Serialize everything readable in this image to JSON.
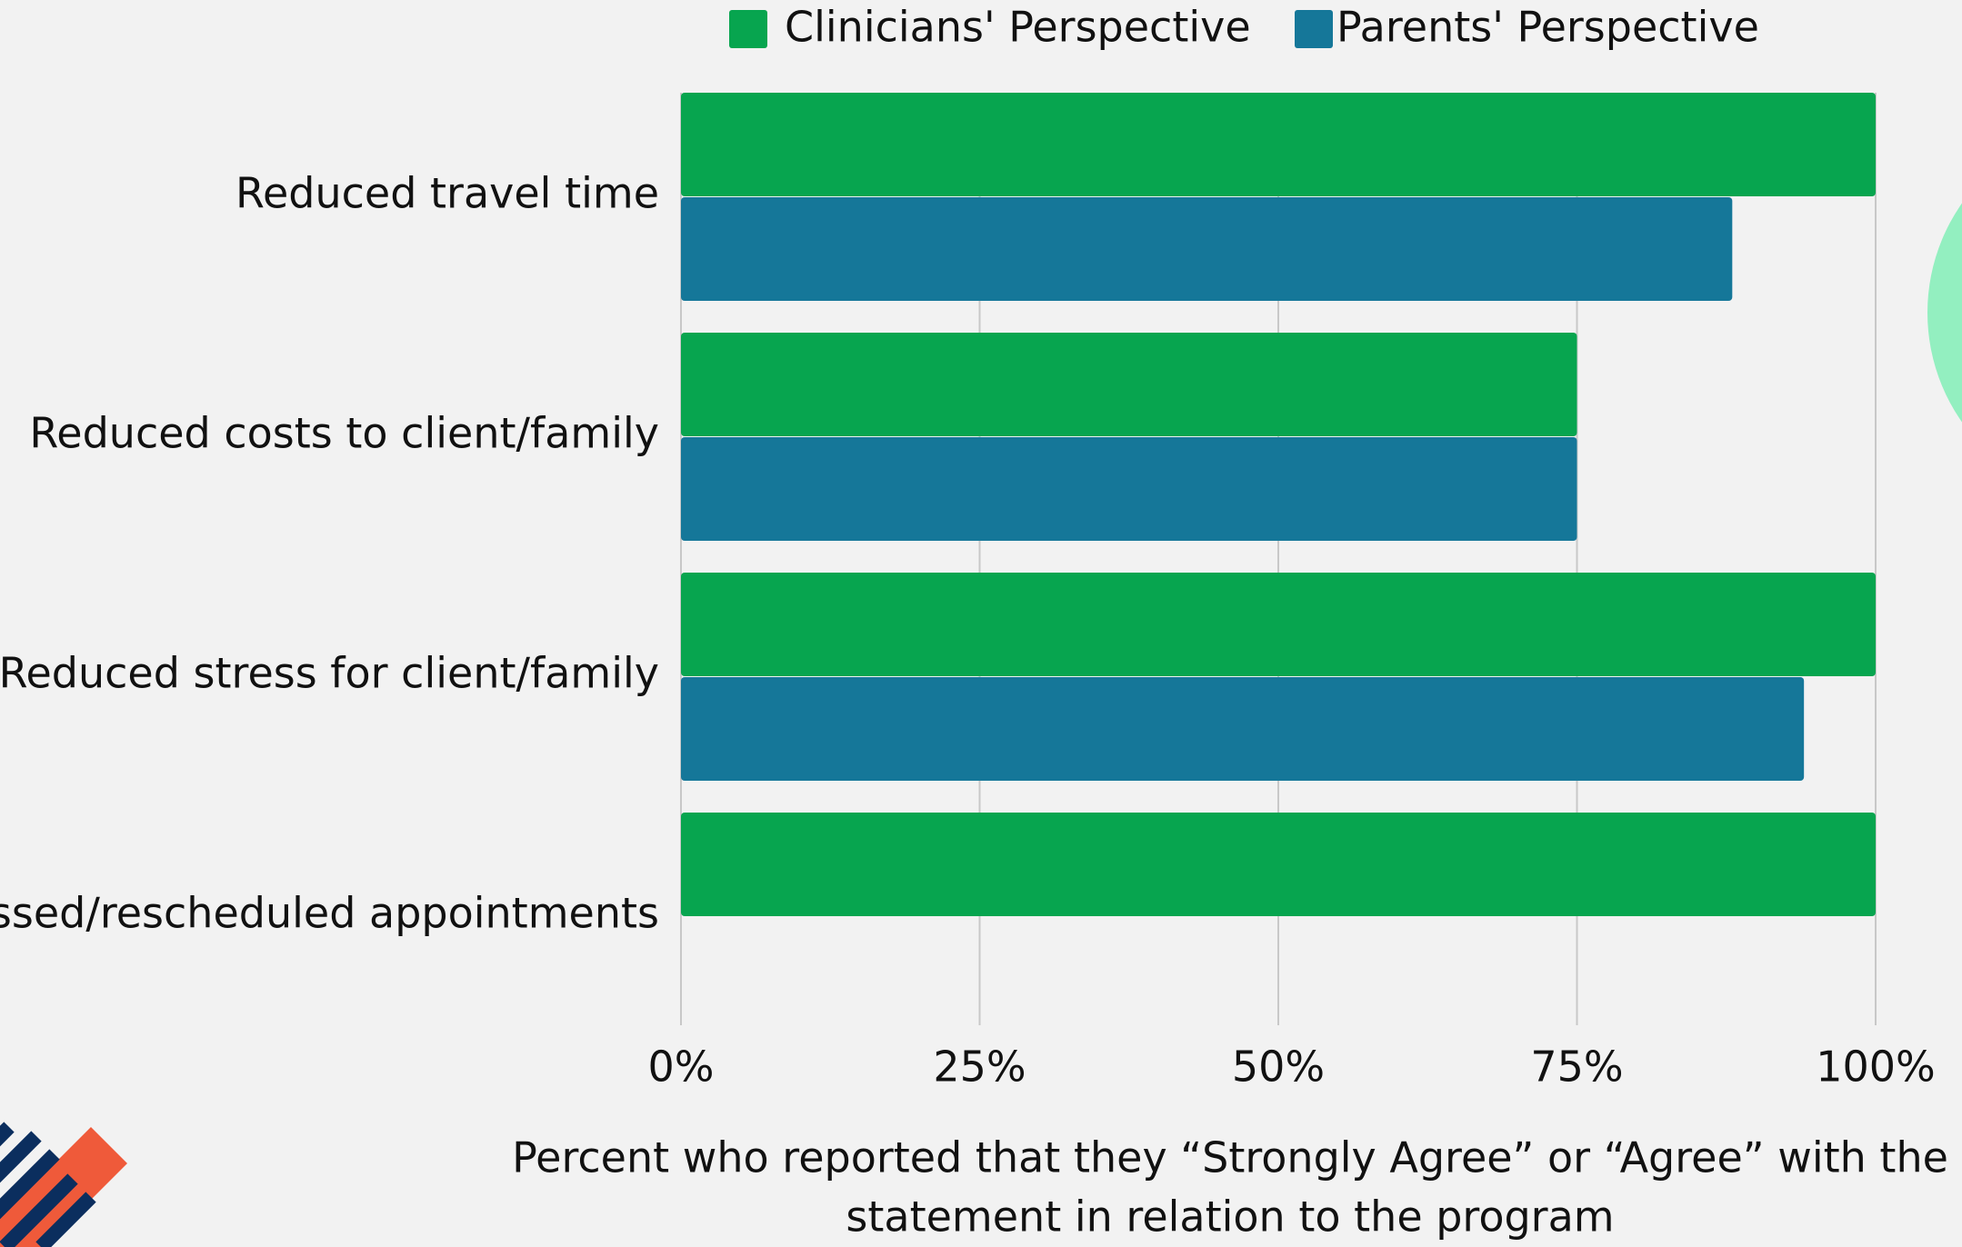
{
  "chart_data": {
    "type": "bar",
    "orientation": "horizontal",
    "categories": [
      "Reduced travel time",
      "Reduced costs to client/family",
      "Reduced stress for client/family",
      "ssed/rescheduled appointments"
    ],
    "series": [
      {
        "name": "Clinicians' Perspective",
        "color": "#07a54f",
        "values": [
          100,
          75,
          100,
          100
        ]
      },
      {
        "name": "Parents' Perspective",
        "color": "#157799",
        "values": [
          88,
          75,
          94,
          null
        ]
      }
    ],
    "xlim": [
      0,
      100
    ],
    "xticks": [
      {
        "value": 0,
        "label": "0%"
      },
      {
        "value": 25,
        "label": "25%"
      },
      {
        "value": 50,
        "label": "50%"
      },
      {
        "value": 75,
        "label": "75%"
      },
      {
        "value": 100,
        "label": "100%"
      }
    ],
    "x_label": [
      "Percent who reported that they “Strongly Agree” or “Agree” with the",
      "statement in relation to the program"
    ],
    "grid": true,
    "legend": "top"
  }
}
